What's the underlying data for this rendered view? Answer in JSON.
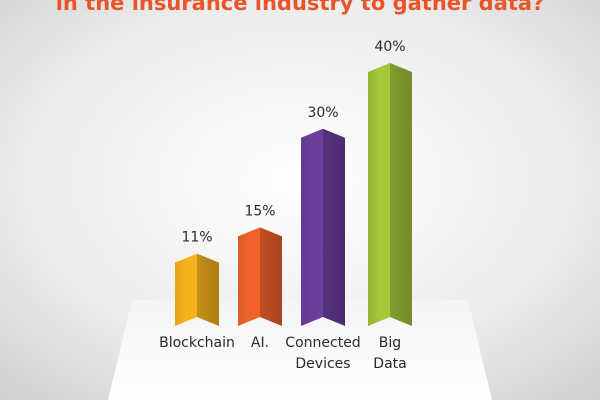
{
  "chart_data": {
    "type": "bar",
    "title": "in the insurance industry to gather data?",
    "categories": [
      "Blockchain",
      "AI.",
      "Connected Devices",
      "Big Data"
    ],
    "values": [
      11,
      15,
      30,
      40
    ],
    "value_labels": [
      "11%",
      "15%",
      "30%",
      "40%"
    ],
    "colors": [
      "#f6b21c",
      "#f0622a",
      "#6b3f9e",
      "#a3c63a"
    ]
  }
}
